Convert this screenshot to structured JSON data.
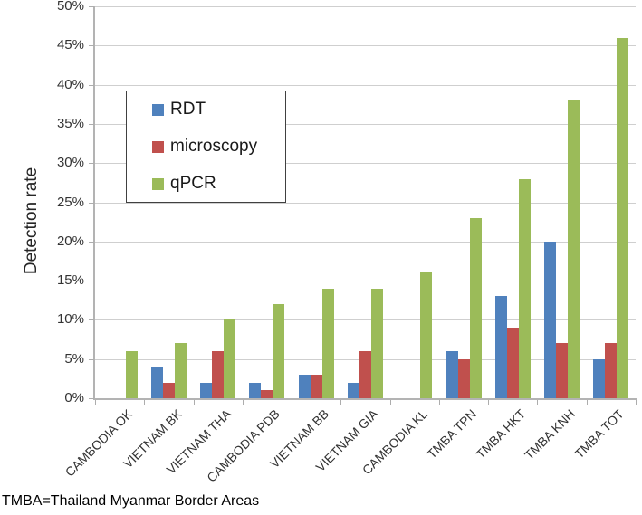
{
  "chart_data": {
    "type": "bar",
    "title": "",
    "ylabel": "Detection rate",
    "xlabel": "",
    "categories": [
      "CAMBODIA OK",
      "VIETNAM BK",
      "VIETNAM THA",
      "CAMBODIA PDB",
      "VIETNAM BB",
      "VIETNAM GIA",
      "CAMBODIA KL",
      "TMBA TPN",
      "TMBA HKT",
      "TMBA KNH",
      "TMBA TOT"
    ],
    "series": [
      {
        "name": "RDT",
        "color": "#4F81BD",
        "values": [
          0,
          4,
          2,
          2,
          3,
          2,
          0,
          6,
          13,
          20,
          5
        ]
      },
      {
        "name": "microscopy",
        "color": "#C0504D",
        "values": [
          0,
          2,
          6,
          1,
          3,
          6,
          0,
          5,
          9,
          7,
          7
        ]
      },
      {
        "name": "qPCR",
        "color": "#9BBB59",
        "values": [
          6,
          7,
          10,
          12,
          14,
          14,
          16,
          23,
          28,
          38,
          46
        ]
      }
    ],
    "ylim": [
      0,
      50
    ],
    "ytick_step": 5,
    "ytick_suffix": "%",
    "grid": true,
    "legend_position": "upper-left-inside"
  },
  "footer": {
    "note": "TMBA=Thailand Myanmar Border Areas"
  },
  "colors": {
    "gridline": "#cfcfcf",
    "axis": "#b3b3b3",
    "tick_text": "#333333",
    "background": "#ffffff"
  }
}
